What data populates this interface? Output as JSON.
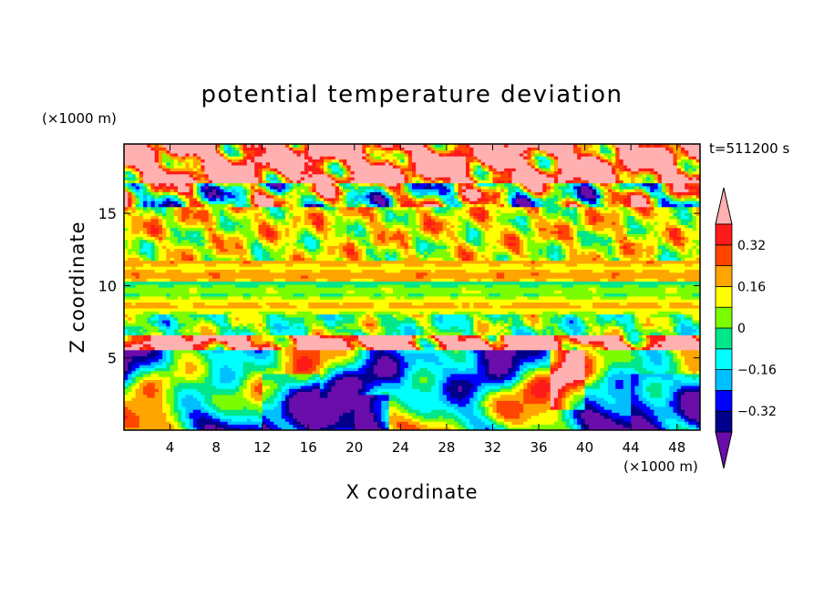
{
  "chart_data": {
    "type": "heatmap",
    "title": "potential temperature deviation",
    "time_label": "t=511200 s",
    "xlabel": "X coordinate",
    "ylabel": "Z coordinate",
    "x_unit": "(×1000 m)",
    "y_unit": "(×1000 m)",
    "xlim": [
      0,
      50
    ],
    "ylim": [
      0,
      19.8
    ],
    "x_ticks": [
      4,
      8,
      12,
      16,
      20,
      24,
      28,
      32,
      36,
      40,
      44,
      48
    ],
    "y_ticks": [
      5,
      10,
      15
    ],
    "colorbar": {
      "levels": [
        -0.4,
        -0.32,
        -0.24,
        -0.16,
        -0.08,
        0,
        0.08,
        0.16,
        0.24,
        0.32,
        0.4
      ],
      "tick_labels": [
        "-0.32",
        "-0.16",
        "0",
        "0.16",
        "0.32"
      ],
      "tick_values": [
        -0.32,
        -0.16,
        0,
        0.16,
        0.32
      ],
      "colors": [
        "#6a0dab",
        "#00008b",
        "#0000ff",
        "#00bfff",
        "#00ffff",
        "#00e68a",
        "#7cfc00",
        "#ffff00",
        "#ffa500",
        "#ff4500",
        "#ff1a1a",
        "#ffb0b0"
      ]
    },
    "bands": [
      {
        "z": [
          17.2,
          19.8
        ],
        "base": 0.45,
        "mix": "strong"
      },
      {
        "z": [
          15.4,
          17.2
        ],
        "base": 0.05,
        "mix": "strong"
      },
      {
        "z": [
          13.2,
          15.4
        ],
        "base": 0.12,
        "mix": "medium"
      },
      {
        "z": [
          11.8,
          13.2
        ],
        "base": 0.1,
        "mix": "medium"
      },
      {
        "z": [
          10.4,
          11.8
        ],
        "base": 0.18,
        "mix": "light"
      },
      {
        "z": [
          9.2,
          10.4
        ],
        "base": 0.02,
        "mix": "light"
      },
      {
        "z": [
          8.0,
          9.2
        ],
        "base": 0.13,
        "mix": "light"
      },
      {
        "z": [
          6.6,
          8.0
        ],
        "base": 0.0,
        "mix": "medium"
      },
      {
        "z": [
          5.6,
          6.6
        ],
        "base": 0.45,
        "mix": "strong"
      },
      {
        "z": [
          0.0,
          5.6
        ],
        "base": -0.1,
        "mix": "plumes"
      }
    ]
  }
}
